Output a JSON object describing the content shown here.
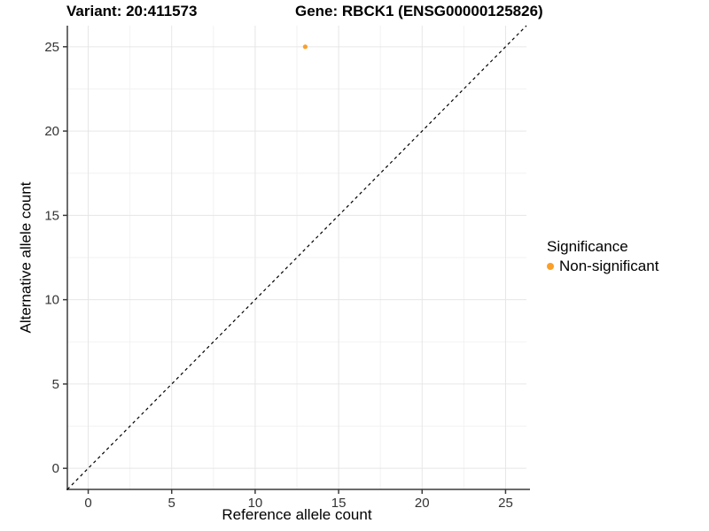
{
  "title": {
    "variant": "Variant: 20:411573",
    "gene": "Gene: RBCK1 (ENSG00000125826)"
  },
  "chart_data": {
    "type": "scatter",
    "xlabel": "Reference allele count",
    "ylabel": "Alternative allele count",
    "xlim": [
      -1.25,
      26.25
    ],
    "ylim": [
      -1.25,
      26.25
    ],
    "x_ticks": [
      0,
      5,
      10,
      15,
      20,
      25
    ],
    "y_ticks": [
      0,
      5,
      10,
      15,
      20,
      25
    ],
    "x_minor_ticks": [
      2.5,
      7.5,
      12.5,
      17.5,
      22.5
    ],
    "y_minor_ticks": [
      2.5,
      7.5,
      12.5,
      17.5,
      22.5
    ],
    "grid": true,
    "points": [
      {
        "x": 13,
        "y": 25,
        "significance": "Non-significant"
      }
    ],
    "identity_line": {
      "slope": 1,
      "intercept": 0,
      "style": "dashed",
      "color": "#000000"
    },
    "legend": {
      "title": "Significance",
      "position": "right",
      "entries": [
        {
          "label": "Non-significant",
          "color": "#F9A02B"
        }
      ]
    }
  },
  "colors": {
    "point": "#F9A02B",
    "grid_major": "#E6E6E6",
    "grid_minor": "#F2F2F2",
    "axis": "#3B3B3B",
    "tick_text": "#333333",
    "background": "#FFFFFF"
  }
}
